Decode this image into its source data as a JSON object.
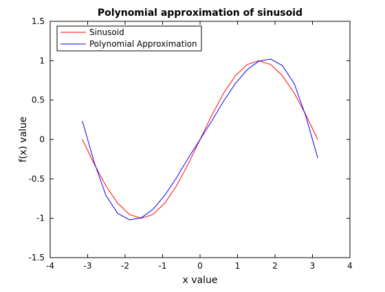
{
  "chart_data": {
    "type": "line",
    "title": "Polynomial approximation of sinusoid",
    "xlabel": "x value",
    "ylabel": "f(x) value",
    "xlim": [
      -4,
      4
    ],
    "ylim": [
      -1.5,
      1.5
    ],
    "xticks": [
      -4,
      -3,
      -2,
      -1,
      0,
      1,
      2,
      3,
      4
    ],
    "xtick_labels": [
      "-4",
      "-3",
      "-2",
      "-1",
      "0",
      "1",
      "2",
      "3",
      "4"
    ],
    "yticks": [
      -1.5,
      -1,
      -0.5,
      0,
      0.5,
      1,
      1.5
    ],
    "ytick_labels": [
      "-1.5",
      "-1",
      "-0.5",
      "0",
      "0.5",
      "1",
      "1.5"
    ],
    "grid": false,
    "legend_position": "top-left",
    "x": [
      -3.1416,
      -2.8274,
      -2.5133,
      -2.1991,
      -1.885,
      -1.5708,
      -1.2566,
      -0.9425,
      -0.6283,
      -0.3142,
      0.0,
      0.3142,
      0.6283,
      0.9425,
      1.2566,
      1.5708,
      1.885,
      2.1991,
      2.5133,
      2.8274,
      3.1416
    ],
    "series": [
      {
        "name": "Sinusoid",
        "color": "#ff0000",
        "values": [
          0.0,
          -0.309,
          -0.5878,
          -0.809,
          -0.9511,
          -1.0,
          -0.9511,
          -0.809,
          -0.5878,
          -0.309,
          0.0,
          0.309,
          0.5878,
          0.809,
          0.9511,
          1.0,
          0.9511,
          0.809,
          0.5878,
          0.309,
          0.0
        ]
      },
      {
        "name": "Polynomial Approximation",
        "color": "#0000ff",
        "values": [
          0.236,
          -0.288,
          -0.71,
          -0.937,
          -1.02,
          -0.995,
          -0.885,
          -0.71,
          -0.486,
          -0.235,
          0.0,
          0.235,
          0.486,
          0.71,
          0.885,
          0.995,
          1.02,
          0.937,
          0.71,
          0.288,
          -0.236
        ]
      }
    ]
  }
}
